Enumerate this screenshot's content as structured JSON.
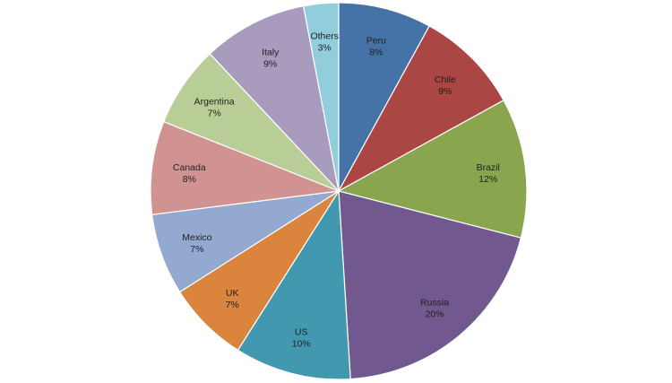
{
  "chart_data": {
    "type": "pie",
    "title": "",
    "slices": [
      {
        "name": "Peru",
        "value": 8,
        "label": "8%",
        "color": "#4572A7"
      },
      {
        "name": "Chile",
        "value": 9,
        "label": "9%",
        "color": "#AA4643"
      },
      {
        "name": "Brazil",
        "value": 12,
        "label": "12%",
        "color": "#89A54E"
      },
      {
        "name": "Russia",
        "value": 20,
        "label": "20%",
        "color": "#71588F"
      },
      {
        "name": "US",
        "value": 10,
        "label": "10%",
        "color": "#4198AF"
      },
      {
        "name": "UK",
        "value": 7,
        "label": "7%",
        "color": "#DB843D"
      },
      {
        "name": "Mexico",
        "value": 7,
        "label": "7%",
        "color": "#93A9CF"
      },
      {
        "name": "Canada",
        "value": 8,
        "label": "8%",
        "color": "#D19392"
      },
      {
        "name": "Argentina",
        "value": 7,
        "label": "7%",
        "color": "#B9CD96"
      },
      {
        "name": "Italy",
        "value": 9,
        "label": "9%",
        "color": "#A99BBD"
      },
      {
        "name": "Others",
        "value": 3,
        "label": "3%",
        "color": "#92CDDC"
      }
    ],
    "start": "12 o'clock",
    "direction": "clockwise",
    "legend": "none",
    "data_labels": "inside"
  }
}
